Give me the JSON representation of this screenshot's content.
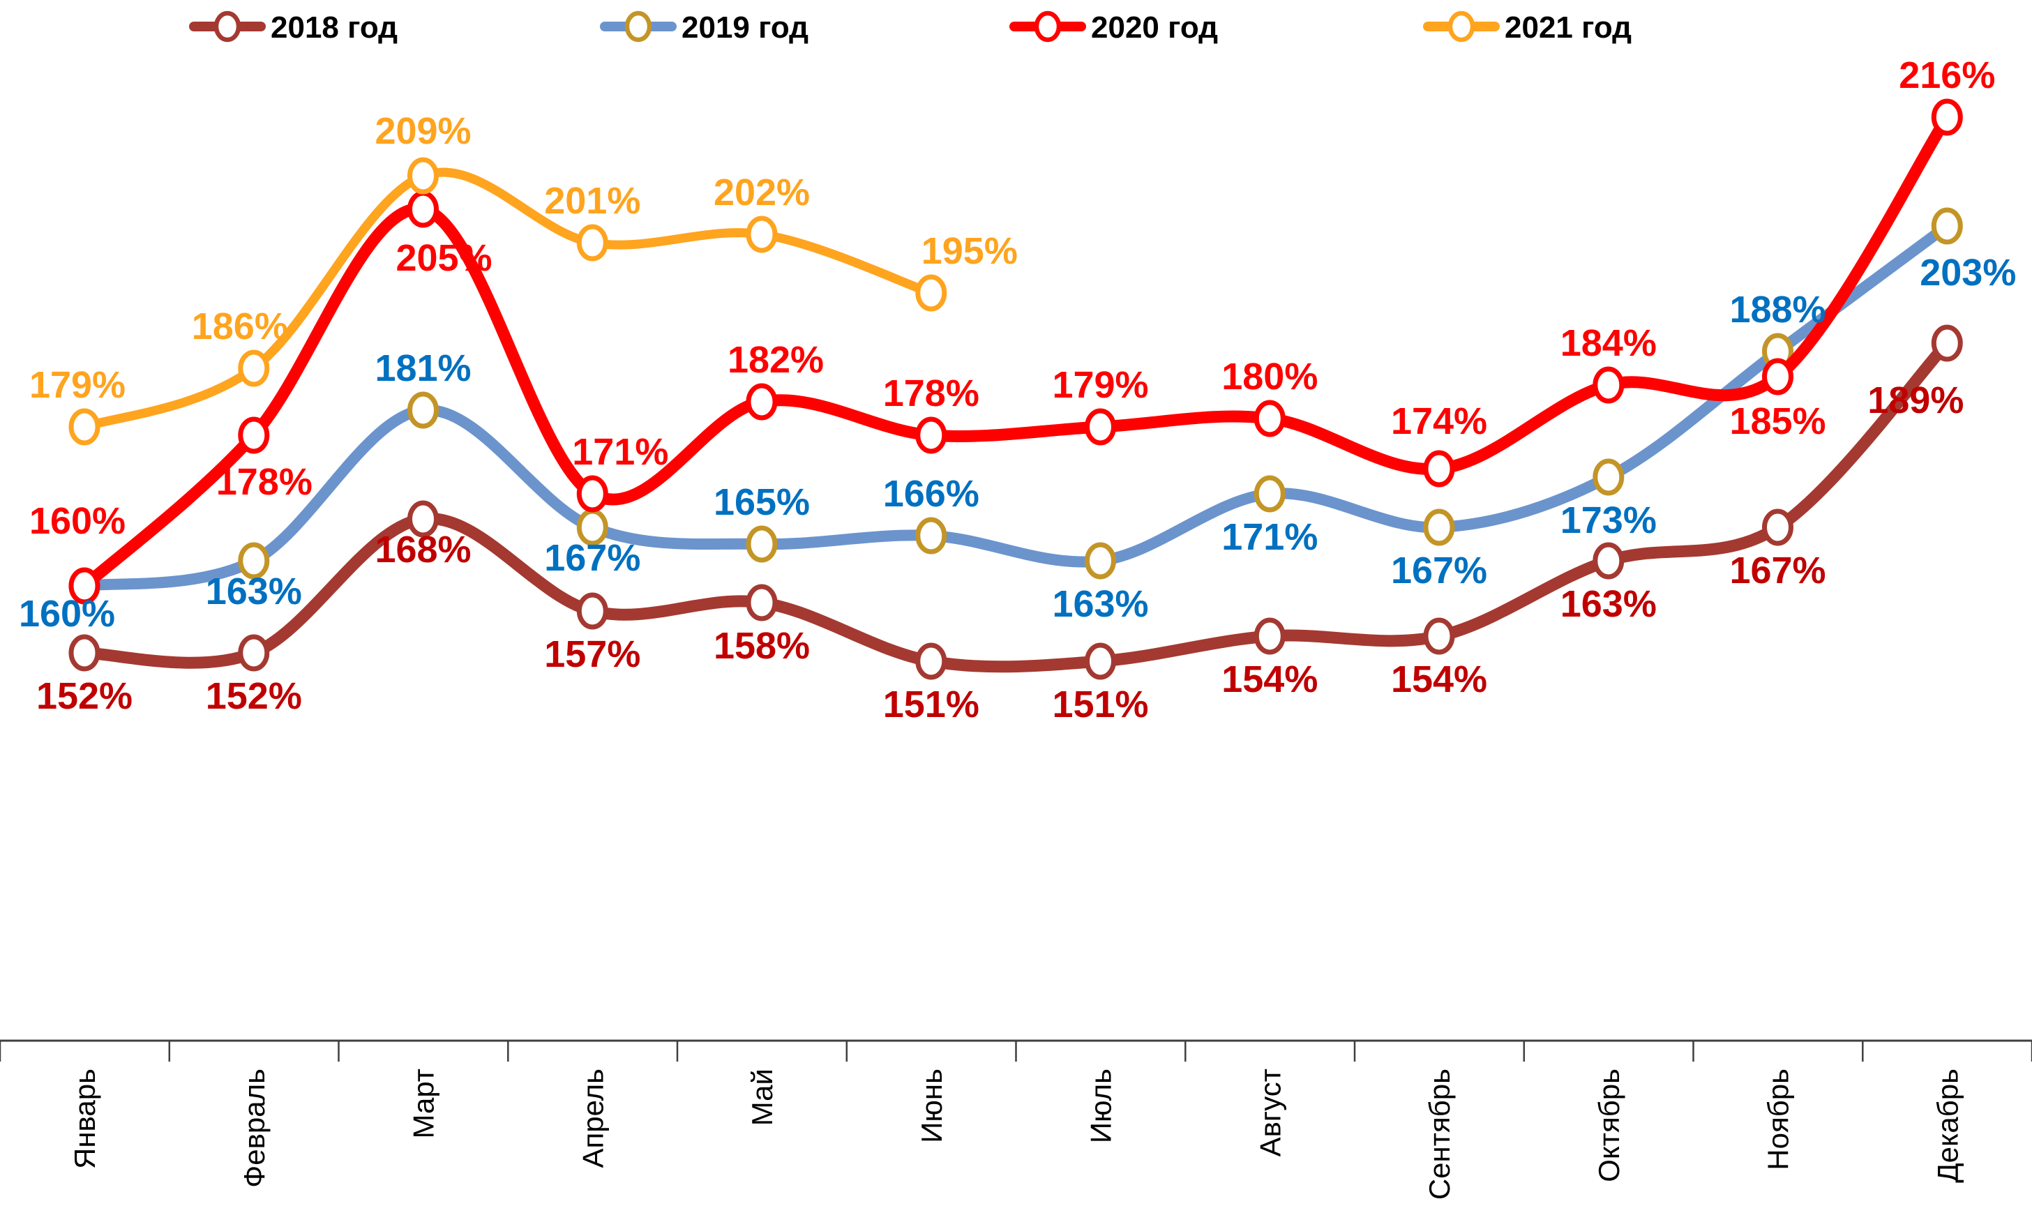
{
  "chart_data": {
    "type": "line",
    "title": "",
    "unit": "%",
    "legend_position": "top",
    "grid": false,
    "background": "#FFFFFF",
    "y_axis": {
      "visible": false,
      "implied_range": [
        145,
        220
      ]
    },
    "x_axis": {
      "labels_rotated": true,
      "axis_color": "#3F3F3F"
    },
    "categories": [
      "Январь",
      "Февраль",
      "Март",
      "Апрель",
      "Май",
      "Июнь",
      "Июль",
      "Август",
      "Сентябрь",
      "Октябрь",
      "Ноябрь",
      "Декабрь"
    ],
    "series": [
      {
        "name": "2018 год",
        "color": "#A43931",
        "label_color": "#C00000",
        "marker_ring": "#A43931",
        "values": [
          152,
          152,
          168,
          157,
          158,
          151,
          151,
          154,
          154,
          163,
          167,
          189
        ],
        "labels": [
          "152%",
          "152%",
          "168%",
          "157%",
          "158%",
          "151%",
          "151%",
          "154%",
          "154%",
          "163%",
          "167%",
          "189%"
        ]
      },
      {
        "name": "2019 год",
        "color": "#6B94CD",
        "label_color": "#0070C0",
        "marker_ring": "#C39527",
        "values": [
          160,
          163,
          181,
          167,
          165,
          166,
          163,
          171,
          167,
          173,
          188,
          203
        ],
        "labels": [
          "160%",
          "163%",
          "181%",
          "167%",
          "165%",
          "166%",
          "163%",
          "171%",
          "167%",
          "173%",
          "188%",
          "203%"
        ]
      },
      {
        "name": "2020 год",
        "color": "#FF0000",
        "label_color": "#FF0000",
        "marker_ring": "#FF0000",
        "values": [
          160,
          178,
          205,
          171,
          182,
          178,
          179,
          180,
          174,
          184,
          185,
          216
        ],
        "labels": [
          "160%",
          "178%",
          "205%",
          "171%",
          "182%",
          "178%",
          "179%",
          "180%",
          "174%",
          "184%",
          "185%",
          "216%"
        ]
      },
      {
        "name": "2021 год",
        "color": "#FFA41E",
        "label_color": "#FFA41E",
        "marker_ring": "#FFA41E",
        "values": [
          179,
          186,
          209,
          201,
          202,
          195,
          null,
          null,
          null,
          null,
          null,
          null
        ],
        "labels": [
          "179%",
          "186%",
          "209%",
          "201%",
          "202%",
          "195%"
        ]
      }
    ]
  }
}
